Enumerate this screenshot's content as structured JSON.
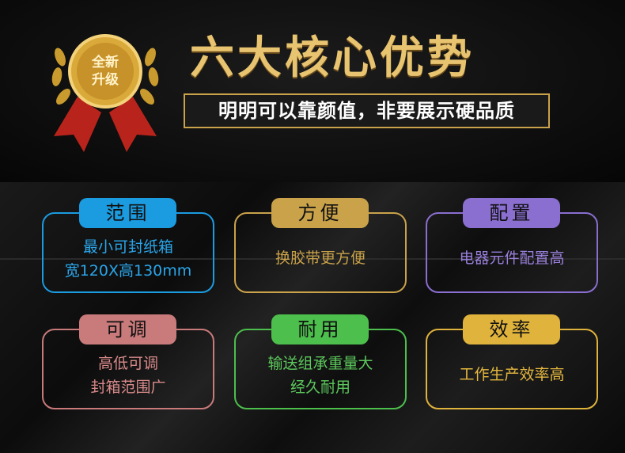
{
  "header": {
    "medal_text": [
      "全新",
      "升级"
    ],
    "title": "六大核心优势",
    "subtitle": "明明可以靠颜值，非要展示硬品质"
  },
  "cards": [
    {
      "label": "范围",
      "lines": [
        "最小可封纸箱",
        "宽120X高130mm"
      ],
      "color": "#1b9be0",
      "text_color": "#2aa6ea"
    },
    {
      "label": "方便",
      "lines": [
        "换胶带更方便"
      ],
      "color": "#c9a24a",
      "text_color": "#c9a24a"
    },
    {
      "label": "配置",
      "lines": [
        "电器元件配置高"
      ],
      "color": "#8a6ed0",
      "text_color": "#9a80dc"
    },
    {
      "label": "可调",
      "lines": [
        "高低可调",
        "封箱范围广"
      ],
      "color": "#c97a7a",
      "text_color": "#d98a8a"
    },
    {
      "label": "耐用",
      "lines": [
        "输送组承重量大",
        "经久耐用"
      ],
      "color": "#4cbf4c",
      "text_color": "#5cc85c"
    },
    {
      "label": "效率",
      "lines": [
        "工作生产效率高"
      ],
      "color": "#e0b33c",
      "text_color": "#e6b83f"
    }
  ]
}
